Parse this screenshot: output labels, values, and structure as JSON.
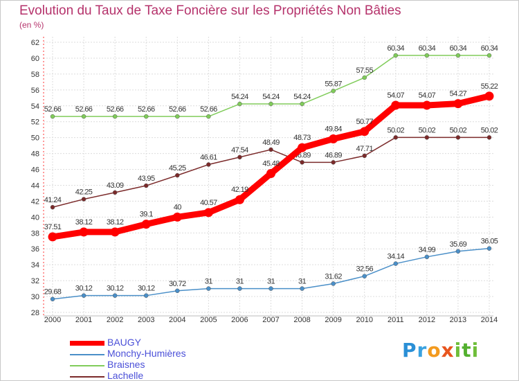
{
  "header": {
    "title": "Evolution du Taux de Taxe Foncière sur les Propriétés Non Bâties",
    "subtitle": "(en %)"
  },
  "logo": {
    "text": "Proxiti"
  },
  "chart_data": {
    "type": "line",
    "title": "Evolution du Taux de Taxe Foncière sur les Propriétés Non Bâties",
    "ylabel": "(en %)",
    "xlabel": "",
    "x": [
      2000,
      2001,
      2002,
      2003,
      2004,
      2005,
      2006,
      2007,
      2008,
      2009,
      2010,
      2011,
      2012,
      2013,
      2014
    ],
    "ylim": [
      28,
      62
    ],
    "yticks": [
      28,
      30,
      32,
      34,
      36,
      38,
      40,
      42,
      44,
      46,
      48,
      50,
      52,
      54,
      56,
      58,
      60,
      62
    ],
    "grid": true,
    "legend_position": "bottom-left",
    "series": [
      {
        "name": "BAUGY",
        "color": "#ff0000",
        "emphasis": true,
        "values": [
          37.51,
          38.12,
          38.12,
          39.1,
          40,
          40.57,
          42.19,
          45.48,
          48.73,
          49.84,
          50.77,
          54.07,
          54.07,
          54.27,
          55.22
        ],
        "labels": [
          "37.51",
          "38.12",
          "38.12",
          "39.1",
          "40",
          "40.57",
          "42.19",
          "45.48",
          "48.73",
          "49.84",
          "50.77",
          "54.07",
          "54.07",
          "54.27",
          "55.22"
        ]
      },
      {
        "name": "Monchy-Humières",
        "color": "#4a8fc8",
        "values": [
          29.68,
          30.12,
          30.12,
          30.12,
          30.72,
          31,
          31,
          31,
          31,
          31.62,
          32.56,
          34.14,
          34.99,
          35.69,
          36.05
        ],
        "labels": [
          "29.68",
          "30.12",
          "30.12",
          "30.12",
          "30.72",
          "31",
          "31",
          "31",
          "31",
          "31.62",
          "32.56",
          "34.14",
          "34.99",
          "35.69",
          "36.05"
        ]
      },
      {
        "name": "Braisnes",
        "color": "#80cc5a",
        "values": [
          52.66,
          52.66,
          52.66,
          52.66,
          52.66,
          52.66,
          54.24,
          54.24,
          54.24,
          55.87,
          57.55,
          60.34,
          60.34,
          60.34,
          60.34
        ],
        "labels": [
          "52.66",
          "52.66",
          "52.66",
          "52.66",
          "52.66",
          "52.66",
          "54.24",
          "54.24",
          "54.24",
          "55.87",
          "57.55",
          "60.34",
          "60.34",
          "60.34",
          "60.34"
        ]
      },
      {
        "name": "Lachelle",
        "color": "#7b2a2a",
        "values": [
          41.24,
          42.25,
          43.09,
          43.95,
          45.25,
          46.61,
          47.54,
          48.49,
          46.89,
          46.89,
          47.71,
          50.02,
          50.02,
          50.02,
          50.02
        ],
        "labels": [
          "41.24",
          "42.25",
          "43.09",
          "43.95",
          "45.25",
          "46.61",
          "47.54",
          "48.49",
          "46.89",
          "46.89",
          "47.71",
          "50.02",
          "50.02",
          "50.02",
          "50.02"
        ]
      }
    ]
  }
}
